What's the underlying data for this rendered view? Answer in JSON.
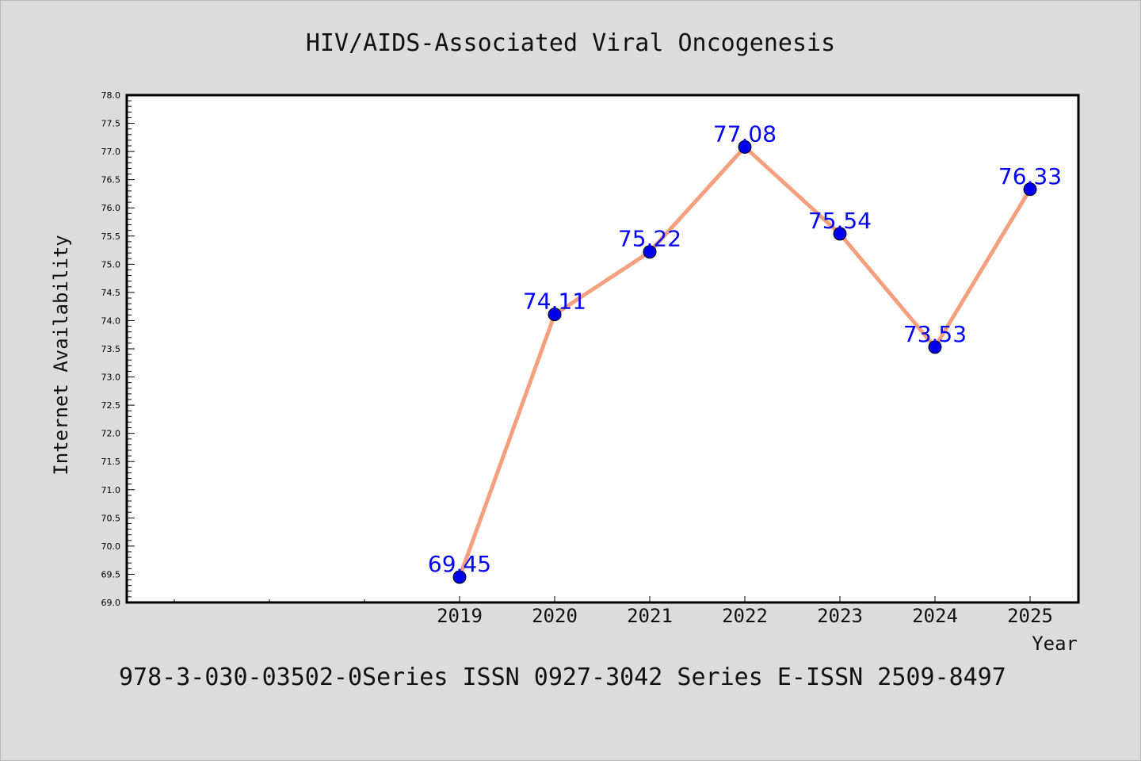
{
  "chart_data": {
    "type": "line",
    "title": "HIV/AIDS-Associated Viral Oncogenesis",
    "xlabel": "Year",
    "ylabel": "Internet Availability",
    "categories": [
      "2019",
      "2020",
      "2021",
      "2022",
      "2023",
      "2024",
      "2025"
    ],
    "series": [
      {
        "values": [
          69.45,
          74.11,
          75.22,
          77.08,
          75.54,
          73.53,
          76.33
        ]
      }
    ],
    "data_labels": [
      "69.45",
      "74.11",
      "75.22",
      "77.08",
      "75.54",
      "73.53",
      "76.33"
    ],
    "ylim": [
      69.0,
      78.0
    ],
    "y_ticks": [
      "69.0",
      "69.5",
      "70.0",
      "70.5",
      "71.0",
      "71.5",
      "72.0",
      "72.5",
      "73.0",
      "73.5",
      "74.0",
      "74.5",
      "75.0",
      "75.5",
      "76.0",
      "76.5",
      "77.0",
      "77.5",
      "78.0"
    ],
    "grid": false,
    "colors": {
      "line": "#f4a07e",
      "marker": "#0000ee",
      "label": "#0000ff",
      "axes": "#000000",
      "plot_bg": "#ffffff",
      "page_bg": "#dcdcdc"
    },
    "footer": "978-3-030-03502-0Series ISSN 0927-3042 Series E-ISSN 2509-8497"
  }
}
